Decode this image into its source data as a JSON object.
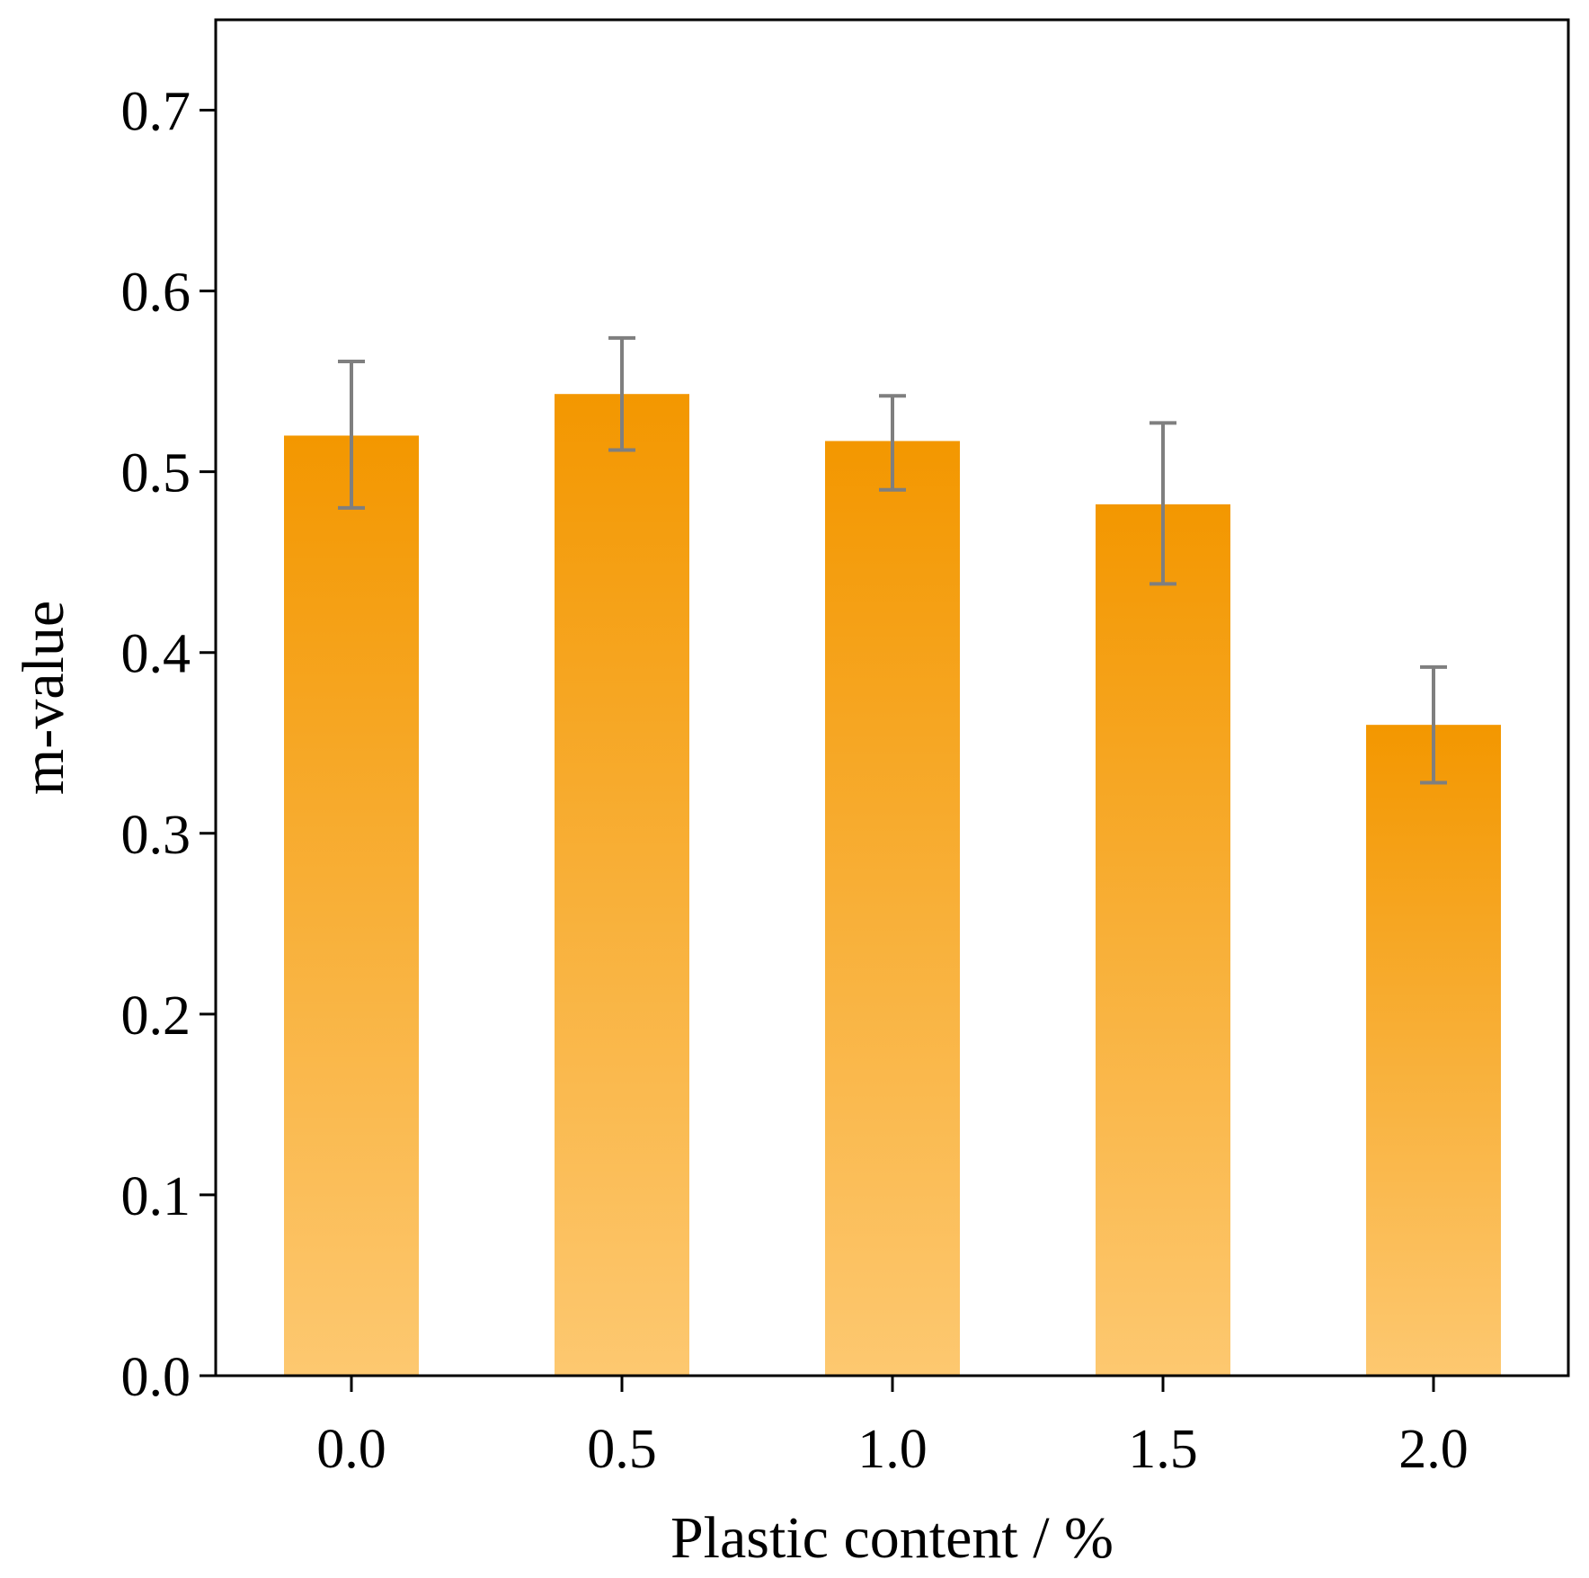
{
  "chart_data": {
    "type": "bar",
    "title": "",
    "xlabel": "Plastic content / %",
    "ylabel": "m-value",
    "categories": [
      "0.0",
      "0.5",
      "1.0",
      "1.5",
      "2.0"
    ],
    "values": [
      0.52,
      0.543,
      0.517,
      0.482,
      0.36
    ],
    "error_upper": [
      0.561,
      0.574,
      0.542,
      0.527,
      0.392
    ],
    "error_lower": [
      0.48,
      0.512,
      0.49,
      0.438,
      0.328
    ],
    "ylim": [
      0,
      0.75
    ],
    "yticks": [
      0.0,
      0.1,
      0.2,
      0.3,
      0.4,
      0.5,
      0.6,
      0.7
    ],
    "ytick_labels": [
      "0.0",
      "0.1",
      "0.2",
      "0.3",
      "0.4",
      "0.5",
      "0.6",
      "0.7"
    ],
    "grid": false,
    "legend": "none",
    "colors": {
      "bar_top": "#f39700",
      "bar_bottom": "#fdc870",
      "error_bar": "#7f7f7f",
      "axis": "#000000"
    }
  }
}
